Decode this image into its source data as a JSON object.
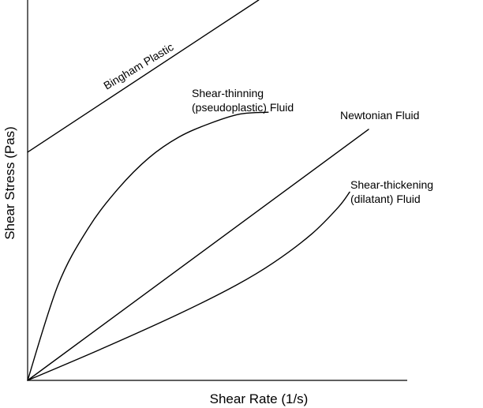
{
  "chart_data": {
    "type": "line",
    "title": "",
    "xlabel": "Shear Rate (1/s)",
    "ylabel": "Shear Stress (Pas)",
    "xlim": [
      0,
      10
    ],
    "ylim": [
      0,
      10
    ],
    "grid": false,
    "legend": "none",
    "ticks": false,
    "series": [
      {
        "name": "Bingham Plastic",
        "label_lines": [
          "Bingham Plastic"
        ],
        "x": [
          0,
          6.1
        ],
        "y": [
          6.0,
          10
        ]
      },
      {
        "name": "Shear-thinning (pseudoplastic) Fluid",
        "label_lines": [
          "Shear-thinning",
          "(pseudoplastic) Fluid"
        ],
        "x": [
          0,
          0.8,
          1.6,
          2.4,
          3.2,
          4.0,
          4.8,
          5.6,
          6.35
        ],
        "y": [
          0,
          2.5,
          4.0,
          5.05,
          5.85,
          6.4,
          6.75,
          7.0,
          7.05
        ]
      },
      {
        "name": "Newtonian Fluid",
        "label_lines": [
          "Newtonian Fluid"
        ],
        "x": [
          0,
          9.0
        ],
        "y": [
          0,
          6.6
        ]
      },
      {
        "name": "Shear-thickening (dilatant) Fluid",
        "label_lines": [
          "Shear-thickening",
          "(dilatant) Fluid"
        ],
        "x": [
          0,
          2.0,
          4.0,
          5.5,
          6.5,
          7.5,
          8.2,
          8.5
        ],
        "y": [
          0,
          0.85,
          1.75,
          2.5,
          3.1,
          3.85,
          4.55,
          4.95
        ]
      }
    ]
  }
}
